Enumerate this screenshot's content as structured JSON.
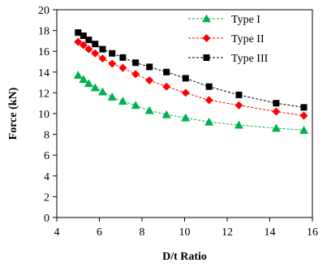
{
  "chart_data": {
    "type": "line",
    "xlabel": "D/t Ratio",
    "ylabel": "Force (kN)",
    "xlim": [
      4,
      16
    ],
    "ylim": [
      0,
      20
    ],
    "xticks": [
      4,
      6,
      8,
      10,
      12,
      14,
      16
    ],
    "yticks": [
      0,
      2,
      4,
      6,
      8,
      10,
      12,
      14,
      16,
      18,
      20
    ],
    "grid": false,
    "legend_position": "top-right",
    "series": [
      {
        "name": "Type I",
        "color": "#00b050",
        "marker": "triangle",
        "line": "dashed",
        "x": [
          5.0,
          5.25,
          5.5,
          5.8,
          6.15,
          6.6,
          7.1,
          7.7,
          8.35,
          9.15,
          10.05,
          11.15,
          12.55,
          14.3,
          15.6
        ],
        "y": [
          13.7,
          13.3,
          12.9,
          12.5,
          12.1,
          11.6,
          11.2,
          10.8,
          10.3,
          9.9,
          9.6,
          9.2,
          8.9,
          8.6,
          8.4
        ]
      },
      {
        "name": "Type II",
        "color": "#ff0000",
        "marker": "diamond",
        "line": "dashed",
        "x": [
          5.0,
          5.25,
          5.5,
          5.8,
          6.15,
          6.6,
          7.1,
          7.7,
          8.35,
          9.15,
          10.05,
          11.15,
          12.55,
          14.3,
          15.6
        ],
        "y": [
          16.9,
          16.6,
          16.2,
          15.8,
          15.3,
          14.8,
          14.4,
          13.8,
          13.2,
          12.6,
          12.0,
          11.3,
          10.8,
          10.2,
          9.8
        ]
      },
      {
        "name": "Type III",
        "color": "#000000",
        "marker": "square",
        "line": "dashed",
        "x": [
          5.0,
          5.25,
          5.5,
          5.8,
          6.15,
          6.6,
          7.1,
          7.7,
          8.35,
          9.15,
          10.05,
          11.15,
          12.55,
          14.3,
          15.6
        ],
        "y": [
          17.8,
          17.5,
          17.1,
          16.7,
          16.2,
          15.8,
          15.4,
          14.9,
          14.5,
          14.0,
          13.4,
          12.6,
          11.8,
          11.0,
          10.6
        ]
      }
    ]
  }
}
